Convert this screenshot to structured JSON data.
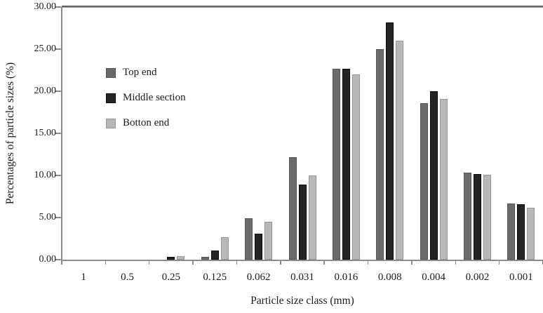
{
  "chart_data": {
    "type": "bar",
    "title": "",
    "xlabel": "Particle size class (mm)",
    "ylabel": "Percentages of particle sizes (%)",
    "categories": [
      "1",
      "0.5",
      "0.25",
      "0.125",
      "0.062",
      "0.031",
      "0.016",
      "0.008",
      "0.004",
      "0.002",
      "0.001"
    ],
    "series": [
      {
        "name": "Top end",
        "color": "#6b6b6b",
        "border_color": "#545454",
        "values": [
          0,
          0,
          0,
          0.3,
          4.9,
          12.2,
          22.7,
          25.0,
          18.6,
          10.3,
          6.7
        ]
      },
      {
        "name": "Middle section",
        "color": "#242424",
        "border_color": "#0a0a0a",
        "values": [
          0,
          0,
          0.35,
          1.1,
          3.1,
          8.9,
          22.7,
          28.2,
          20.0,
          10.2,
          6.6
        ]
      },
      {
        "name": "Botton end",
        "color": "#b8b8b8",
        "border_color": "#979797",
        "values": [
          0,
          0,
          0.4,
          2.7,
          4.5,
          10.0,
          22.0,
          26.0,
          19.1,
          10.1,
          6.2
        ]
      }
    ],
    "ylim": [
      0,
      30
    ],
    "y_ticks": [
      0,
      5,
      10,
      15,
      20,
      25,
      30
    ],
    "y_tick_labels": [
      "0.00",
      "5.00",
      "10.00",
      "15.00",
      "20.00",
      "25.00",
      "30.00"
    ],
    "grid": false,
    "legend_position": "upper-left-inside"
  }
}
